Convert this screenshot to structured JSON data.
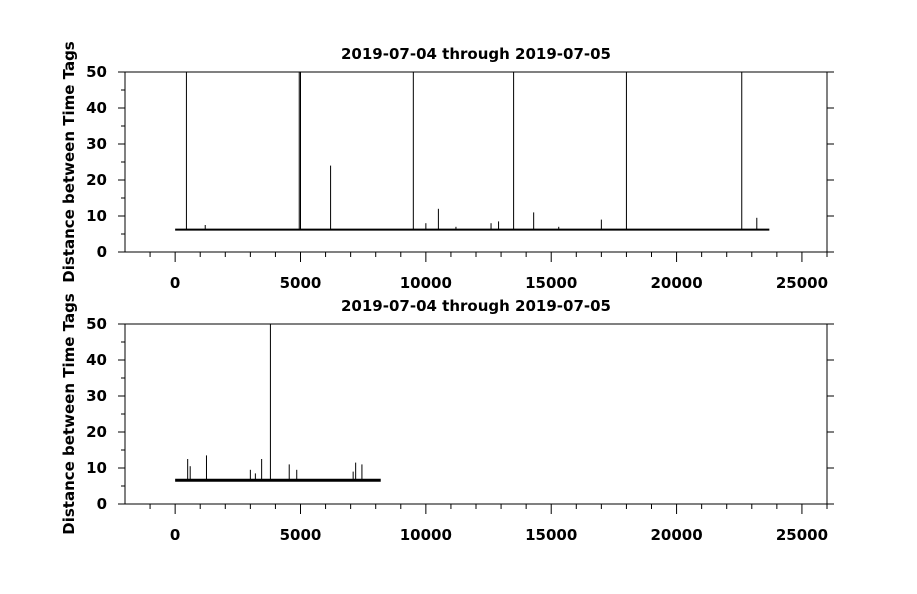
{
  "chart_data": [
    {
      "type": "line",
      "title": "2019-07-04 through 2019-07-05",
      "xlabel": "",
      "ylabel": "Distance between Time Tags",
      "xlim": [
        -2000,
        26000
      ],
      "ylim": [
        0,
        50
      ],
      "xticks": [
        0,
        5000,
        10000,
        15000,
        20000,
        25000
      ],
      "yticks": [
        0,
        10,
        20,
        30,
        40,
        50
      ],
      "baseline": 6.2,
      "x_range": [
        0,
        23700
      ],
      "spikes": [
        {
          "x": 450,
          "y": 50
        },
        {
          "x": 1200,
          "y": 7.5
        },
        {
          "x": 4950,
          "y": 50
        },
        {
          "x": 5000,
          "y": 50
        },
        {
          "x": 6200,
          "y": 24
        },
        {
          "x": 9500,
          "y": 50
        },
        {
          "x": 10000,
          "y": 8
        },
        {
          "x": 10500,
          "y": 12
        },
        {
          "x": 11200,
          "y": 7
        },
        {
          "x": 12600,
          "y": 8
        },
        {
          "x": 12900,
          "y": 8.5
        },
        {
          "x": 13500,
          "y": 50
        },
        {
          "x": 14300,
          "y": 11
        },
        {
          "x": 15300,
          "y": 7
        },
        {
          "x": 17000,
          "y": 9
        },
        {
          "x": 18000,
          "y": 50
        },
        {
          "x": 22600,
          "y": 50
        },
        {
          "x": 23200,
          "y": 9.5
        }
      ]
    },
    {
      "type": "line",
      "title": "2019-07-04 through 2019-07-05",
      "xlabel": "",
      "ylabel": "Distance between Time Tags",
      "xlim": [
        -2000,
        26000
      ],
      "ylim": [
        0,
        50
      ],
      "xticks": [
        0,
        5000,
        10000,
        15000,
        20000,
        25000
      ],
      "yticks": [
        0,
        10,
        20,
        30,
        40,
        50
      ],
      "baseline": 6.6,
      "x_range": [
        0,
        8200
      ],
      "spikes": [
        {
          "x": 500,
          "y": 12.5
        },
        {
          "x": 600,
          "y": 10.5
        },
        {
          "x": 1250,
          "y": 13.5
        },
        {
          "x": 3000,
          "y": 9.5
        },
        {
          "x": 3200,
          "y": 8.5
        },
        {
          "x": 3450,
          "y": 12.5
        },
        {
          "x": 3800,
          "y": 50
        },
        {
          "x": 4550,
          "y": 11
        },
        {
          "x": 4850,
          "y": 9.5
        },
        {
          "x": 7100,
          "y": 9
        },
        {
          "x": 7200,
          "y": 11.5
        },
        {
          "x": 7450,
          "y": 11
        }
      ]
    }
  ]
}
